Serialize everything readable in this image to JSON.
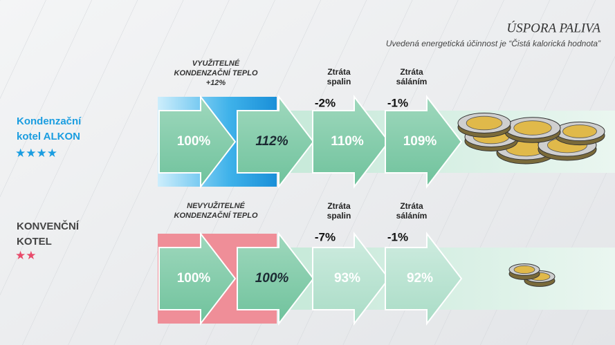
{
  "header": {
    "title": "ÚSPORA PALIVA",
    "subtitle": "Uvedená energetická účinnost je “Čistá kalorická hodnota”"
  },
  "rows": [
    {
      "label": [
        "Kondenzační",
        "kotel   ALKON"
      ],
      "stars": "★★★★",
      "heat": [
        "VYUŽITELNÉ",
        "KONDENZAČNÍ TEPLO",
        "+12%"
      ],
      "losses": [
        {
          "name": [
            "Ztráta",
            "spalin"
          ],
          "value": "-2%"
        },
        {
          "name": [
            "Ztráta",
            "sáláním"
          ],
          "value": "-1%"
        }
      ],
      "arrows": [
        "100%",
        "112%",
        "110%",
        "109%"
      ]
    },
    {
      "label": [
        "KONVENČNÍ",
        "KOTEL"
      ],
      "stars": "★★",
      "heat": [
        "NEVYUŽITELNÉ",
        "KONDENZAČNÍ TEPLO"
      ],
      "losses": [
        {
          "name": [
            "Ztráta",
            "spalin"
          ],
          "value": "-7%"
        },
        {
          "name": [
            "Ztráta",
            "sáláním"
          ],
          "value": "-1%"
        }
      ],
      "arrows": [
        "100%",
        "100%",
        "93%",
        "92%"
      ]
    }
  ]
}
